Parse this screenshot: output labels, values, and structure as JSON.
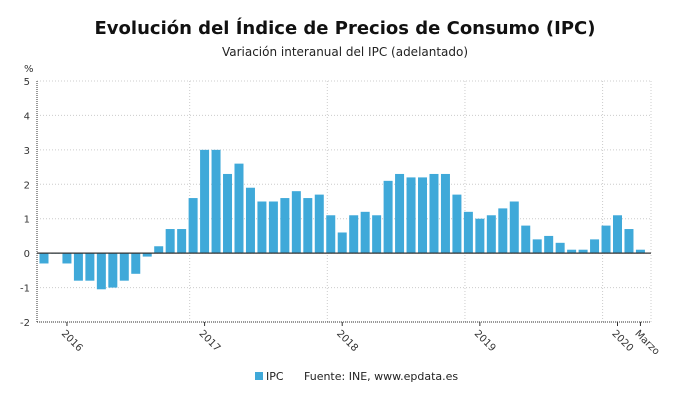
{
  "chart_data": {
    "type": "bar",
    "title": "Evolución del Índice de Precios de Consumo (IPC)",
    "subtitle": "Variación interanual del IPC (adelantado)",
    "ylabel": "%",
    "ylim": [
      -2,
      5
    ],
    "yticks": [
      5,
      4,
      3,
      2,
      1,
      0,
      -1,
      -2
    ],
    "grid": true,
    "color": "#3fa9d9",
    "x_tick_labels": [
      {
        "label": "2016",
        "month": "2016-01"
      },
      {
        "label": "2017",
        "month": "2017-01"
      },
      {
        "label": "2018",
        "month": "2018-01"
      },
      {
        "label": "2019",
        "month": "2019-01"
      },
      {
        "label": "2020",
        "month": "2020-01"
      },
      {
        "label": "Marzo",
        "month": "2020-03"
      }
    ],
    "categories": [
      "2015-11",
      "2015-12",
      "2016-01",
      "2016-02",
      "2016-03",
      "2016-04",
      "2016-05",
      "2016-06",
      "2016-07",
      "2016-08",
      "2016-09",
      "2016-10",
      "2016-11",
      "2016-12",
      "2017-01",
      "2017-02",
      "2017-03",
      "2017-04",
      "2017-05",
      "2017-06",
      "2017-07",
      "2017-08",
      "2017-09",
      "2017-10",
      "2017-11",
      "2017-12",
      "2018-01",
      "2018-02",
      "2018-03",
      "2018-04",
      "2018-05",
      "2018-06",
      "2018-07",
      "2018-08",
      "2018-09",
      "2018-10",
      "2018-11",
      "2018-12",
      "2019-01",
      "2019-02",
      "2019-03",
      "2019-04",
      "2019-05",
      "2019-06",
      "2019-07",
      "2019-08",
      "2019-09",
      "2019-10",
      "2019-11",
      "2019-12",
      "2020-01",
      "2020-02",
      "2020-03"
    ],
    "series": [
      {
        "name": "IPC",
        "values": [
          -0.3,
          0.0,
          -0.3,
          -0.8,
          -0.8,
          -1.05,
          -1.0,
          -0.8,
          -0.6,
          -0.1,
          0.2,
          0.7,
          0.7,
          1.6,
          3.0,
          3.0,
          2.3,
          2.6,
          1.9,
          1.5,
          1.5,
          1.6,
          1.8,
          1.6,
          1.7,
          1.1,
          0.6,
          1.1,
          1.2,
          1.1,
          2.1,
          2.3,
          2.2,
          2.2,
          2.3,
          2.3,
          1.7,
          1.2,
          1.0,
          1.1,
          1.3,
          1.5,
          0.8,
          0.4,
          0.5,
          0.3,
          0.1,
          0.1,
          0.4,
          0.8,
          1.1,
          0.7,
          0.1
        ]
      }
    ],
    "legend": {
      "position": "bottom",
      "label": "IPC"
    },
    "source": "Fuente: INE, www.epdata.es"
  }
}
